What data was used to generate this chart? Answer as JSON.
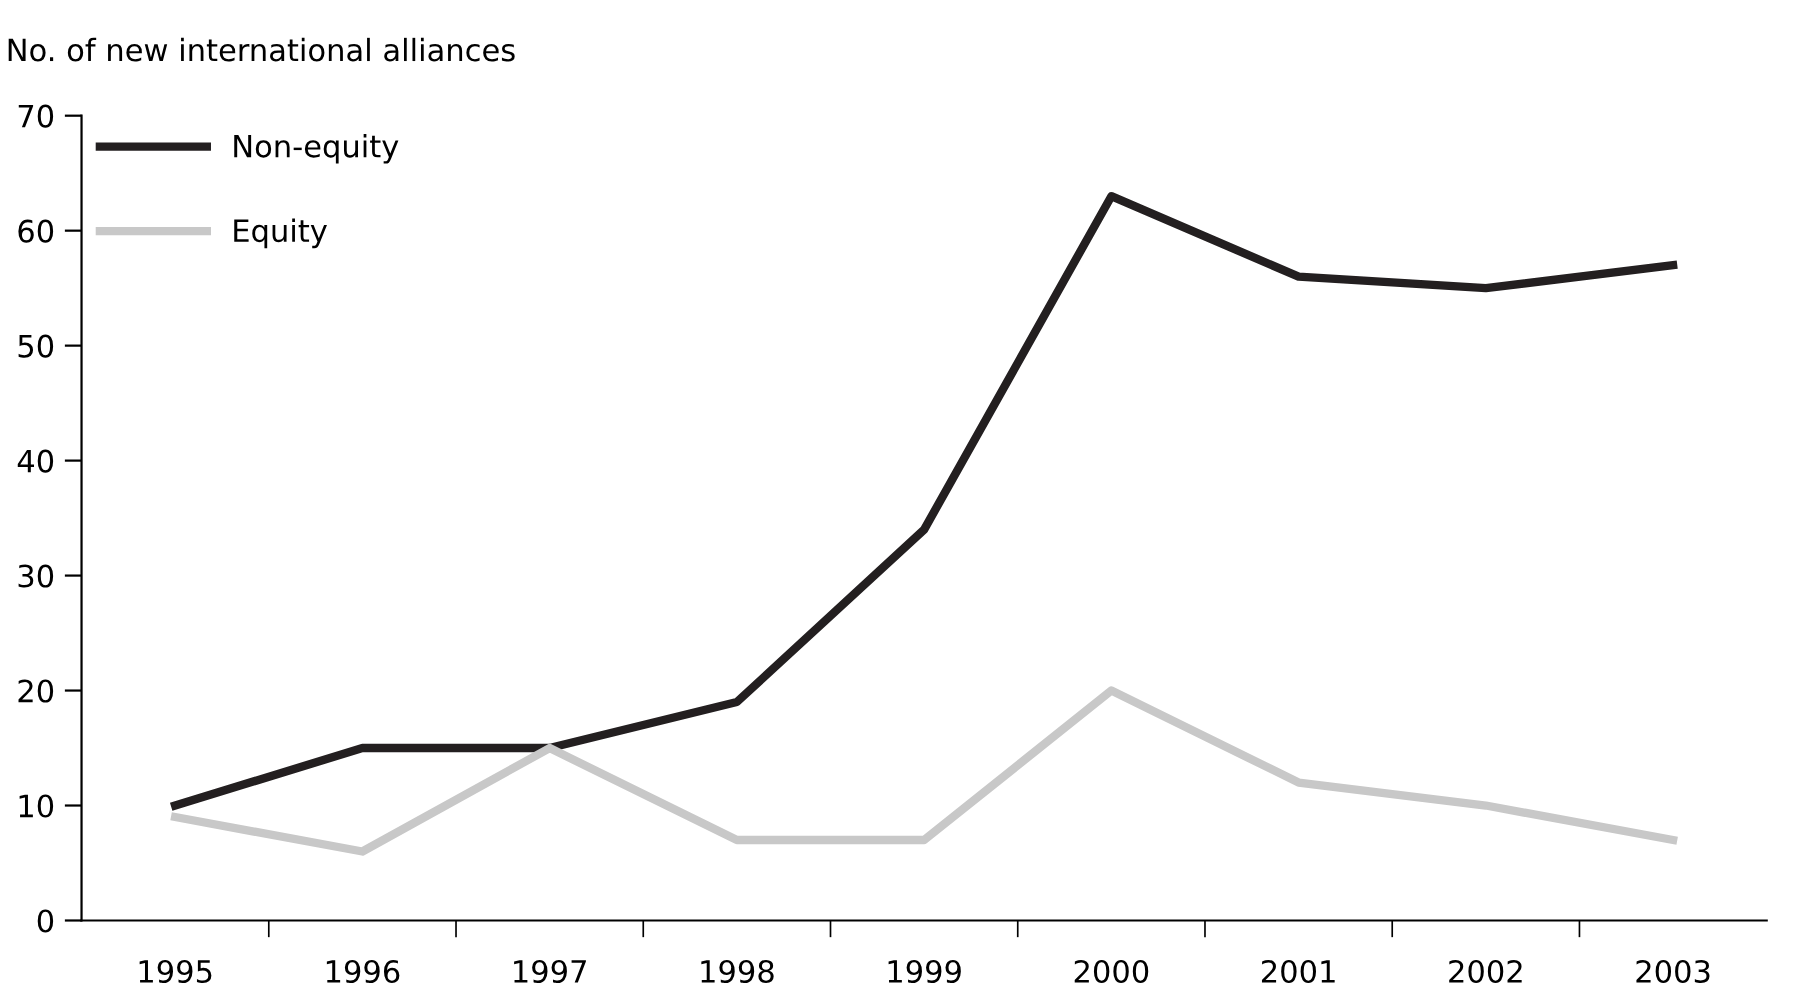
{
  "chart_data": {
    "type": "line",
    "ylabel": "No. of new international alliances",
    "categories": [
      "1995",
      "1996",
      "1997",
      "1998",
      "1999",
      "2000",
      "2001",
      "2002",
      "2003"
    ],
    "series": [
      {
        "name": "Non-equity",
        "color": "#231f20",
        "values": [
          10,
          15,
          15,
          19,
          34,
          63,
          56,
          55,
          57
        ]
      },
      {
        "name": "Equity",
        "color": "#c8c8c8",
        "values": [
          9,
          6,
          15,
          7,
          7,
          20,
          12,
          10,
          7
        ]
      }
    ],
    "ylim": [
      0,
      70
    ],
    "yticks": [
      0,
      10,
      20,
      30,
      40,
      50,
      60,
      70
    ],
    "grid": false,
    "legend": "top left",
    "marker": "none",
    "line_style": "solid"
  }
}
